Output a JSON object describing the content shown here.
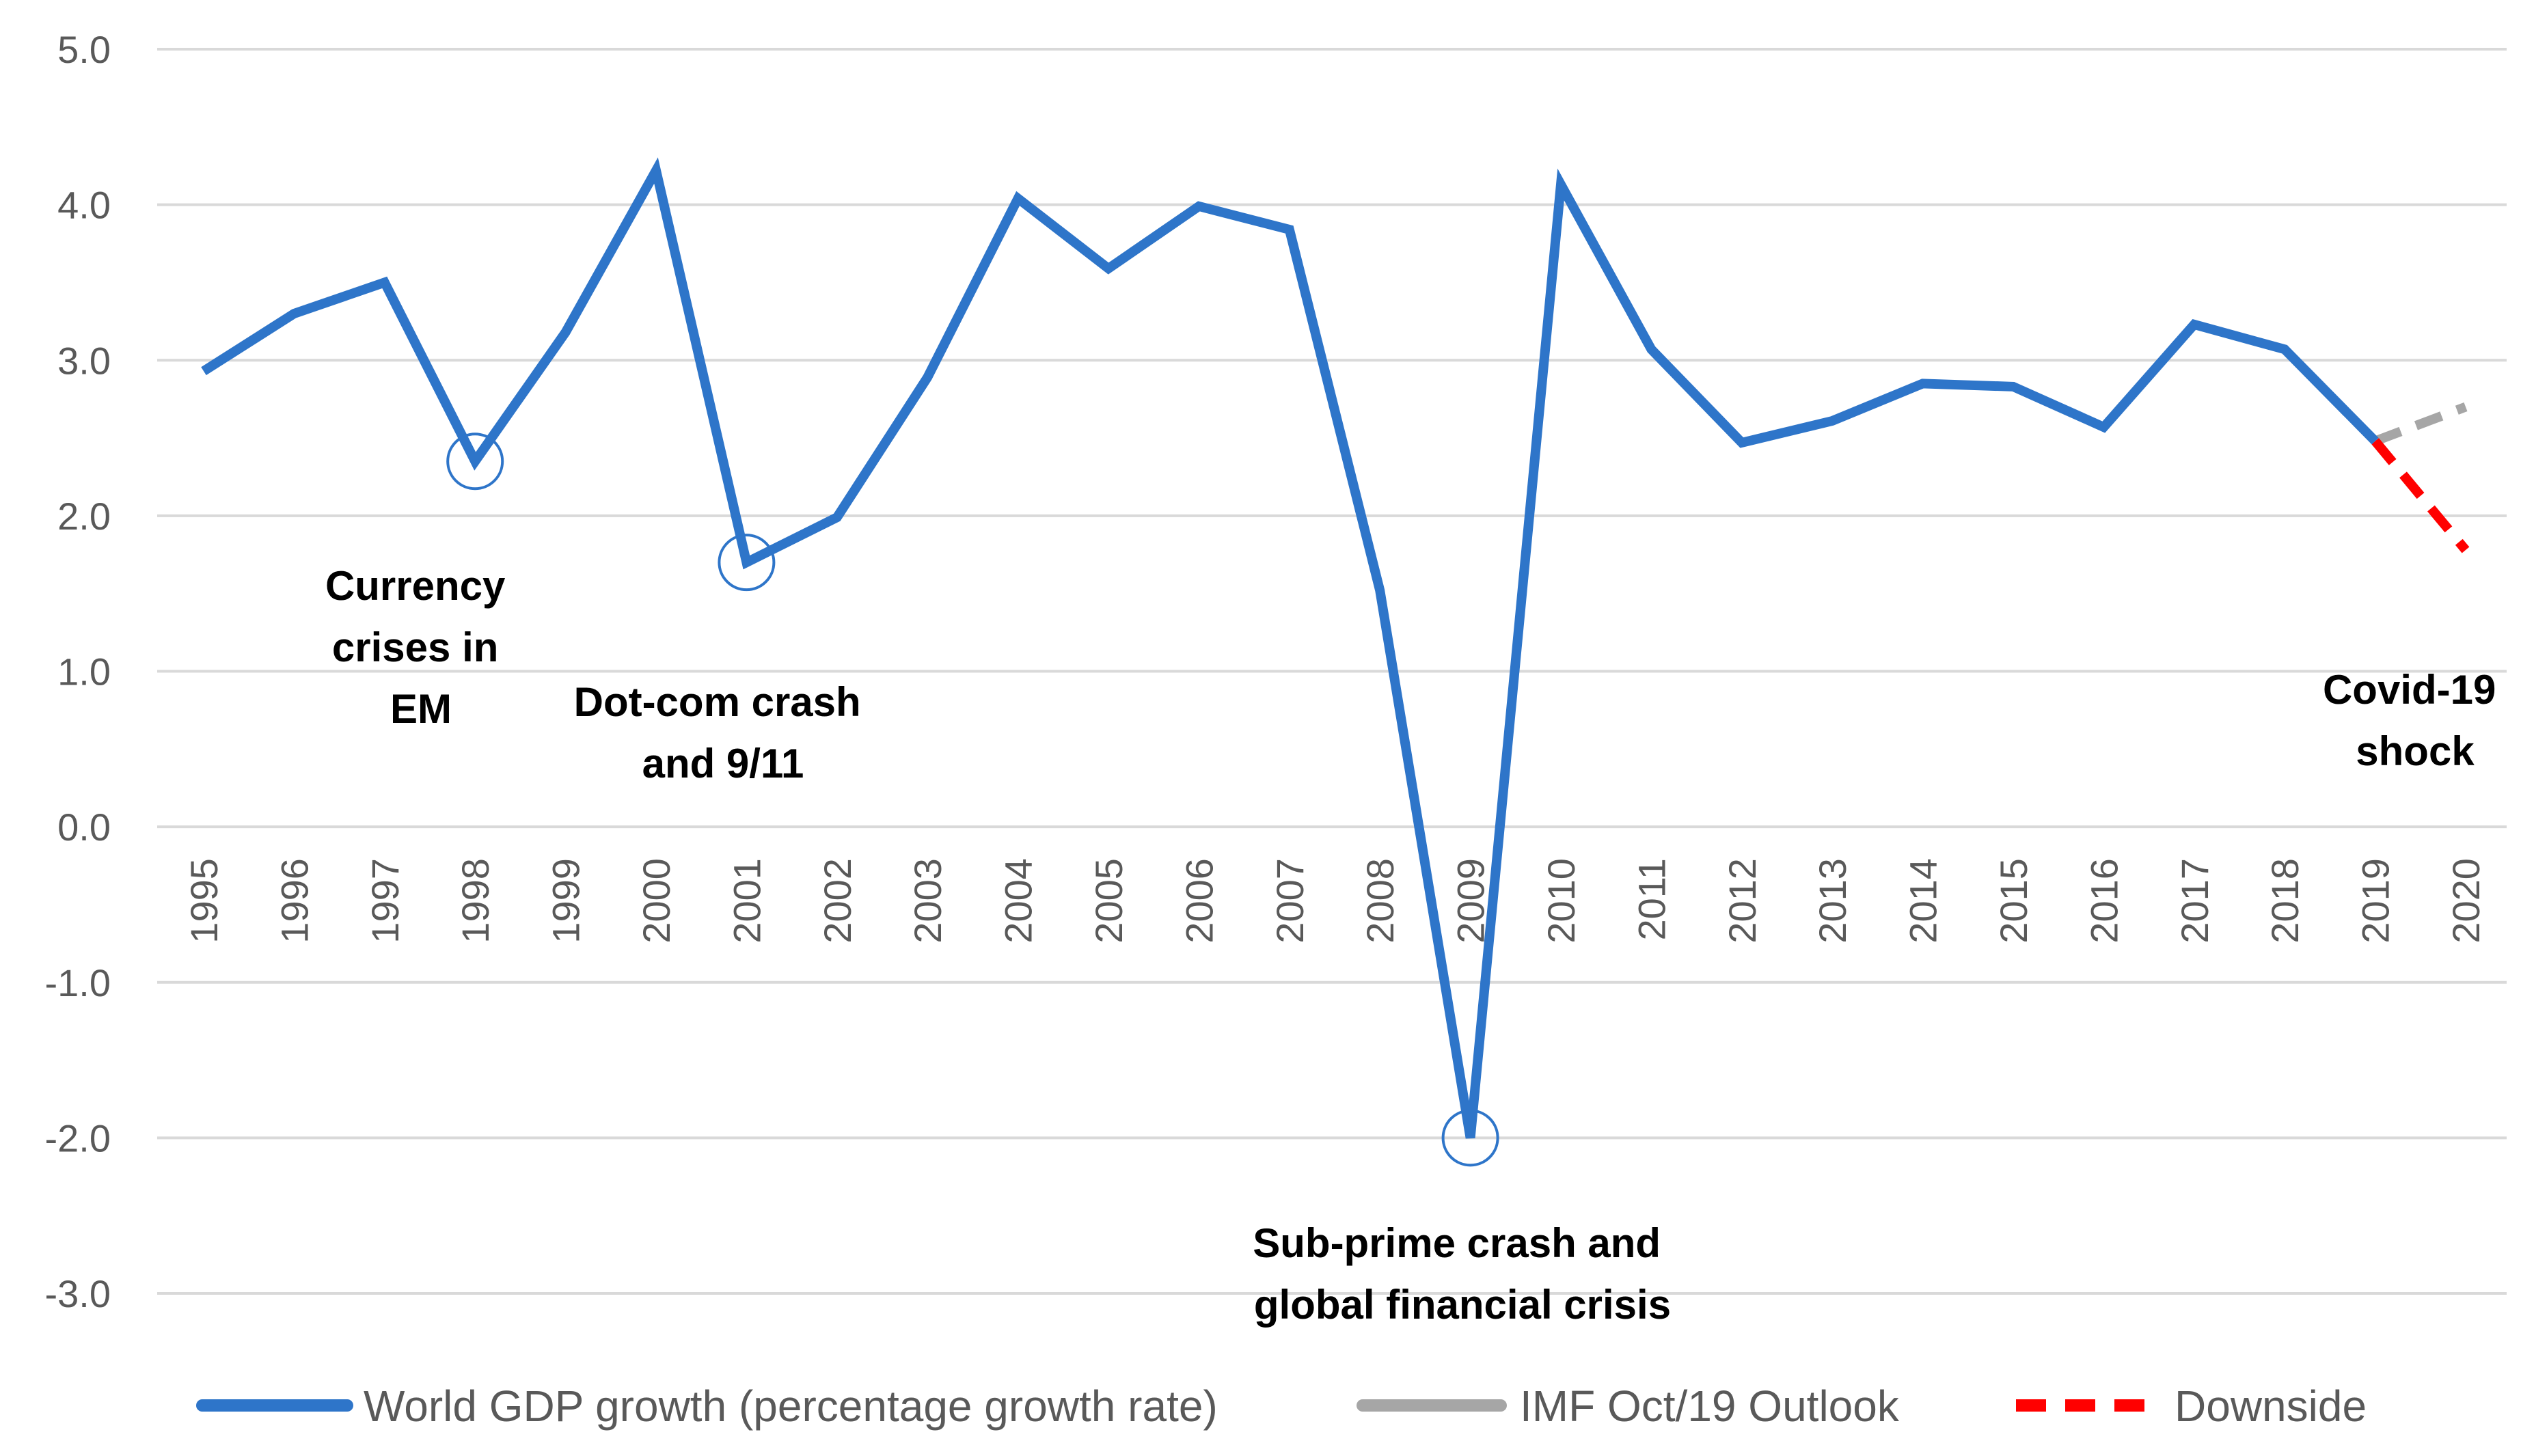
{
  "chart_data": {
    "type": "line",
    "title": "",
    "xlabel": "",
    "ylabel": "",
    "ylim": [
      -3,
      5
    ],
    "yticks": [
      "-3.0",
      "-2.0",
      "-1.0",
      "0.0",
      "1.0",
      "2.0",
      "3.0",
      "4.0",
      "5.0"
    ],
    "grid": true,
    "categories": [
      "1995",
      "1996",
      "1997",
      "1998",
      "1999",
      "2000",
      "2001",
      "2002",
      "2003",
      "2004",
      "2005",
      "2006",
      "2007",
      "2008",
      "2009",
      "2010",
      "2011",
      "2012",
      "2013",
      "2014",
      "2015",
      "2016",
      "2017",
      "2018",
      "2019",
      "2020"
    ],
    "series": [
      {
        "name": "World GDP growth (percentage growth rate)",
        "color": "#2e75c9",
        "style": "solid",
        "x": [
          "1995",
          "1996",
          "1997",
          "1998",
          "1999",
          "2000",
          "2001",
          "2002",
          "2003",
          "2004",
          "2005",
          "2006",
          "2007",
          "2008",
          "2009",
          "2010",
          "2011",
          "2012",
          "2013",
          "2014",
          "2015",
          "2016",
          "2017",
          "2018",
          "2019"
        ],
        "values": [
          2.93,
          3.3,
          3.5,
          2.35,
          3.18,
          4.22,
          1.7,
          1.99,
          2.89,
          4.04,
          3.59,
          3.99,
          3.84,
          1.52,
          -2.0,
          4.13,
          3.07,
          2.47,
          2.61,
          2.85,
          2.83,
          2.57,
          3.23,
          3.07,
          2.48
        ]
      },
      {
        "name": "IMF Oct/19 Outlook",
        "color": "#a6a6a6",
        "style": "dash",
        "x": [
          "2019",
          "2020"
        ],
        "values": [
          2.48,
          2.7
        ]
      },
      {
        "name": "Downside",
        "color": "#ff0000",
        "style": "dash",
        "x": [
          "2019",
          "2020"
        ],
        "values": [
          2.48,
          1.78
        ]
      }
    ],
    "highlights": [
      {
        "x": "1998",
        "value": 2.35
      },
      {
        "x": "2001",
        "value": 1.7
      },
      {
        "x": "2009",
        "value": -2.0
      }
    ],
    "annotations": [
      {
        "id": "currency",
        "lines": [
          "Currency",
          "crises in",
          "EM"
        ]
      },
      {
        "id": "dotcom",
        "lines": [
          "Dot-com crash",
          "and 9/11"
        ]
      },
      {
        "id": "subprime",
        "lines": [
          "Sub-prime  crash and",
          "global financial crisis"
        ]
      },
      {
        "id": "covid",
        "lines": [
          "Covid-19",
          "shock"
        ]
      }
    ],
    "legend": {
      "position": "bottom",
      "items": [
        {
          "label": "World GDP growth (percentage growth rate)",
          "color": "#2e75c9",
          "style": "solid"
        },
        {
          "label": "IMF Oct/19 Outlook",
          "color": "#a6a6a6",
          "style": "solid"
        },
        {
          "label": "Downside",
          "color": "#ff0000",
          "style": "dash"
        }
      ]
    }
  }
}
